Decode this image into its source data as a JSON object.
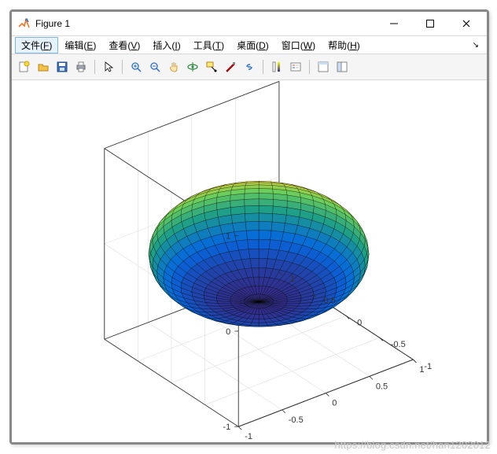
{
  "window": {
    "title": "Figure 1",
    "icon_colors": {
      "bg": "#ffffff",
      "accent": "#e8762d",
      "peak": "#3a6fb7"
    }
  },
  "menubar": {
    "items": [
      {
        "label": "文件",
        "accel": "F",
        "active": true
      },
      {
        "label": "编辑",
        "accel": "E",
        "active": false
      },
      {
        "label": "查看",
        "accel": "V",
        "active": false
      },
      {
        "label": "插入",
        "accel": "I",
        "active": false
      },
      {
        "label": "工具",
        "accel": "T",
        "active": false
      },
      {
        "label": "桌面",
        "accel": "D",
        "active": false
      },
      {
        "label": "窗口",
        "accel": "W",
        "active": false
      },
      {
        "label": "帮助",
        "accel": "H",
        "active": false
      }
    ]
  },
  "toolbar": {
    "buttons": [
      "new-figure",
      "open",
      "save",
      "print",
      "sep",
      "pointer",
      "sep",
      "zoom-in",
      "zoom-out",
      "pan",
      "rotate3d",
      "data-cursor",
      "brush",
      "link",
      "sep",
      "colorbar",
      "legend",
      "sep",
      "hide-tools",
      "dock"
    ]
  },
  "plot": {
    "type": "3d-surface",
    "shape": "oblate-ellipsoid",
    "radii": {
      "rx": 1.0,
      "ry": 1.0,
      "rz": 0.5
    },
    "mesh_lines": {
      "longitude": 48,
      "latitude": 24
    },
    "axes": {
      "x": {
        "lim": [
          -1,
          1
        ],
        "ticks": [
          -1,
          -0.5,
          0,
          0.5,
          1
        ]
      },
      "y": {
        "lim": [
          -1,
          1
        ],
        "ticks": [
          -1,
          -0.5,
          0,
          0.5,
          1
        ]
      },
      "z": {
        "lim": [
          -1,
          1
        ],
        "ticks": [
          -1,
          0,
          1
        ]
      }
    },
    "axis_line_color": "#333333",
    "grid_color": "#dddddd",
    "background_color": "#ffffff",
    "colormap": {
      "name": "parula-like",
      "stops": [
        {
          "t": 0.0,
          "color": "#352a87"
        },
        {
          "t": 0.2,
          "color": "#0567df"
        },
        {
          "t": 0.4,
          "color": "#1f9e89"
        },
        {
          "t": 0.6,
          "color": "#6cce5a"
        },
        {
          "t": 0.8,
          "color": "#e2cf3a"
        },
        {
          "t": 1.0,
          "color": "#f9fb0e"
        }
      ]
    },
    "mesh_edge_color": "#000000",
    "mesh_edge_width": 0.4,
    "tick_fontsize": 11,
    "view_azimuth_deg": -37.5,
    "view_elevation_deg": 30
  },
  "watermark": "https://blog.csdn.net/han1202012"
}
